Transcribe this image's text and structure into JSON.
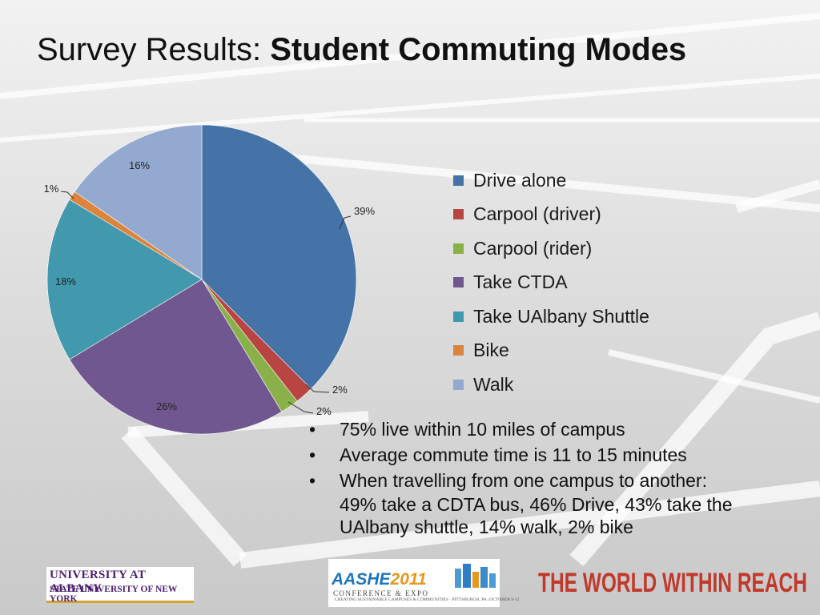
{
  "slide": {
    "title_regular": "Survey Results: ",
    "title_bold": "Student Commuting Modes"
  },
  "chart_data": {
    "type": "pie",
    "categories": [
      "Drive alone",
      "Carpool (driver)",
      "Carpool (rider)",
      "Take CTDA",
      "Take UAlbany Shuttle",
      "Bike",
      "Walk"
    ],
    "values": [
      39,
      2,
      2,
      26,
      18,
      1,
      16
    ],
    "labels": [
      "39%",
      "2%",
      "2%",
      "26%",
      "18%",
      "1%",
      "16%"
    ],
    "colors": [
      "#4573a7",
      "#b84541",
      "#8ab04a",
      "#71578f",
      "#4298ad",
      "#db843d",
      "#93a9cf"
    ],
    "legend_placement": "right",
    "title": ""
  },
  "bullets": [
    "75% live within 10 miles of campus",
    "Average commute time is 11 to 15 minutes",
    "When travelling from one campus to another:"
  ],
  "bullet_continuation": [
    "49% take a CDTA bus, 46% Drive, 43% take the",
    "UAlbany shuttle, 14% walk, 2% bike"
  ],
  "logos": {
    "university_line1": "UNIVERSITY AT ALBANY",
    "university_line2": "STATE UNIVERSITY OF NEW YORK",
    "aashe_main": "AASHE",
    "aashe_year": "2011",
    "aashe_sub": "CONFERENCE & EXPO",
    "aashe_tagline": "CREATING SUSTAINABLE CAMPUSES & COMMUNITIES · PITTSBURGH, PA | OCTOBER 9-12",
    "world_text": "THE WORLD WITHIN REACH"
  }
}
